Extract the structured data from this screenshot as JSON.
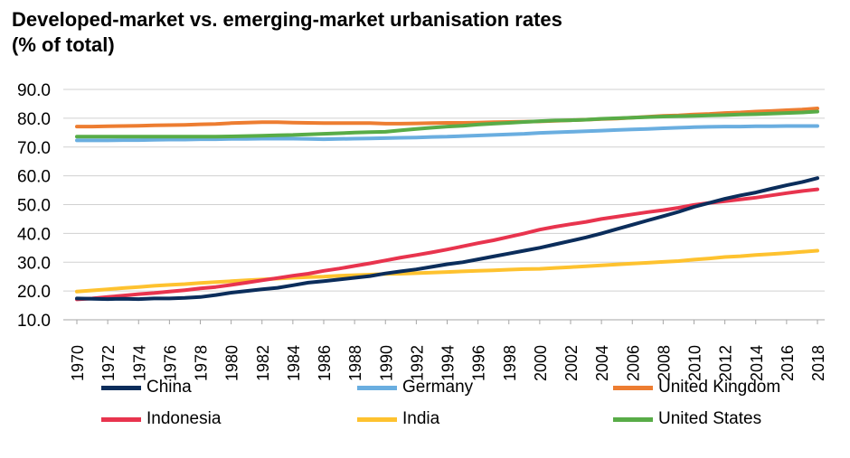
{
  "chart_data": {
    "type": "line",
    "title_line1": "Developed-market vs. emerging-market urbanisation rates",
    "title_line2": "(% of total)",
    "ylim": [
      10,
      90
    ],
    "yticks": [
      "90.0",
      "80.0",
      "70.0",
      "60.0",
      "50.0",
      "40.0",
      "30.0",
      "20.0",
      "10.0"
    ],
    "ytick_values": [
      90,
      80,
      70,
      60,
      50,
      40,
      30,
      20,
      10
    ],
    "xticks": [
      "1970",
      "1972",
      "1974",
      "1976",
      "1978",
      "1980",
      "1982",
      "1984",
      "1986",
      "1988",
      "1990",
      "1992",
      "1994",
      "1996",
      "1998",
      "2000",
      "2002",
      "2004",
      "2006",
      "2008",
      "2010",
      "2012",
      "2014",
      "2016",
      "2018"
    ],
    "x": [
      1970,
      1971,
      1972,
      1973,
      1974,
      1975,
      1976,
      1977,
      1978,
      1979,
      1980,
      1981,
      1982,
      1983,
      1984,
      1985,
      1986,
      1987,
      1988,
      1989,
      1990,
      1991,
      1992,
      1993,
      1994,
      1995,
      1996,
      1997,
      1998,
      1999,
      2000,
      2001,
      2002,
      2003,
      2004,
      2005,
      2006,
      2007,
      2008,
      2009,
      2010,
      2011,
      2012,
      2013,
      2014,
      2015,
      2016,
      2017,
      2018
    ],
    "grid": true,
    "legend_position": "bottom",
    "series": [
      {
        "name": "China",
        "color": "#0b2d5b",
        "values": [
          17.4,
          17.3,
          17.2,
          17.3,
          17.2,
          17.4,
          17.4,
          17.6,
          17.9,
          18.6,
          19.4,
          20.0,
          20.6,
          21.1,
          22.0,
          22.9,
          23.4,
          24.0,
          24.6,
          25.2,
          26.1,
          26.8,
          27.5,
          28.4,
          29.3,
          30.0,
          31.0,
          32.0,
          33.0,
          34.0,
          35.0,
          36.2,
          37.4,
          38.6,
          40.0,
          41.5,
          43.0,
          44.5,
          46.0,
          47.5,
          49.2,
          50.6,
          52.0,
          53.2,
          54.2,
          55.5,
          56.7,
          57.8,
          59.2
        ]
      },
      {
        "name": "Germany",
        "color": "#6aaee0",
        "values": [
          72.3,
          72.3,
          72.3,
          72.4,
          72.4,
          72.5,
          72.6,
          72.6,
          72.7,
          72.7,
          72.8,
          72.8,
          72.9,
          72.9,
          72.9,
          72.8,
          72.7,
          72.8,
          72.9,
          73.0,
          73.1,
          73.2,
          73.3,
          73.5,
          73.6,
          73.8,
          74.0,
          74.2,
          74.4,
          74.6,
          74.9,
          75.1,
          75.3,
          75.5,
          75.7,
          75.9,
          76.1,
          76.3,
          76.5,
          76.7,
          76.9,
          77.0,
          77.1,
          77.1,
          77.2,
          77.2,
          77.3,
          77.3,
          77.3
        ]
      },
      {
        "name": "United Kingdom",
        "color": "#ed7d31",
        "values": [
          77.1,
          77.1,
          77.2,
          77.3,
          77.4,
          77.5,
          77.6,
          77.7,
          77.9,
          78.0,
          78.3,
          78.5,
          78.6,
          78.6,
          78.5,
          78.4,
          78.3,
          78.3,
          78.3,
          78.3,
          78.1,
          78.1,
          78.2,
          78.3,
          78.4,
          78.4,
          78.5,
          78.6,
          78.7,
          78.8,
          78.9,
          79.1,
          79.3,
          79.5,
          79.7,
          79.9,
          80.2,
          80.5,
          80.8,
          81.0,
          81.3,
          81.5,
          81.8,
          82.0,
          82.3,
          82.5,
          82.8,
          83.0,
          83.4
        ]
      },
      {
        "name": "Indonesia",
        "color": "#e8344e",
        "values": [
          17.1,
          17.4,
          17.9,
          18.4,
          18.9,
          19.3,
          19.8,
          20.3,
          20.9,
          21.4,
          22.1,
          22.9,
          23.7,
          24.5,
          25.3,
          26.0,
          27.0,
          27.8,
          28.7,
          29.6,
          30.6,
          31.6,
          32.5,
          33.4,
          34.4,
          35.5,
          36.6,
          37.6,
          38.8,
          40.0,
          41.3,
          42.3,
          43.2,
          44.0,
          45.0,
          45.8,
          46.6,
          47.4,
          48.1,
          48.9,
          49.9,
          50.6,
          51.2,
          51.8,
          52.4,
          53.2,
          54.0,
          54.7,
          55.3
        ]
      },
      {
        "name": "India",
        "color": "#fec22f",
        "values": [
          19.8,
          20.2,
          20.6,
          21.0,
          21.4,
          21.8,
          22.1,
          22.4,
          22.8,
          23.1,
          23.4,
          23.7,
          24.0,
          24.3,
          24.6,
          24.8,
          25.0,
          25.3,
          25.5,
          25.7,
          25.9,
          26.0,
          26.2,
          26.4,
          26.6,
          26.8,
          27.0,
          27.2,
          27.4,
          27.6,
          27.7,
          28.0,
          28.3,
          28.6,
          28.9,
          29.2,
          29.5,
          29.8,
          30.1,
          30.4,
          30.9,
          31.3,
          31.8,
          32.1,
          32.5,
          32.8,
          33.2,
          33.6,
          34.0
        ]
      },
      {
        "name": "United States",
        "color": "#58ac47",
        "values": [
          73.6,
          73.6,
          73.6,
          73.6,
          73.6,
          73.6,
          73.6,
          73.6,
          73.6,
          73.6,
          73.7,
          73.8,
          73.9,
          74.1,
          74.2,
          74.4,
          74.6,
          74.8,
          75.0,
          75.2,
          75.3,
          75.8,
          76.3,
          76.7,
          77.1,
          77.4,
          77.8,
          78.1,
          78.4,
          78.7,
          79.0,
          79.2,
          79.3,
          79.5,
          79.8,
          80.0,
          80.2,
          80.4,
          80.6,
          80.7,
          80.8,
          81.0,
          81.1,
          81.3,
          81.4,
          81.6,
          81.8,
          82.0,
          82.3
        ]
      }
    ]
  }
}
